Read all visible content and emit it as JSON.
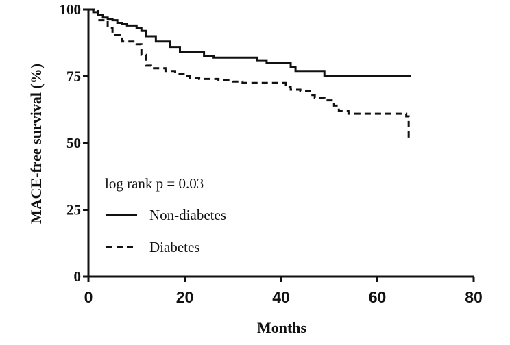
{
  "chart_data": {
    "type": "line",
    "title": "",
    "xlabel": "Months",
    "ylabel": "MACE-free survival (%)",
    "xlim": [
      0,
      80
    ],
    "ylim": [
      0,
      100
    ],
    "xticks": [
      0,
      20,
      40,
      60,
      80
    ],
    "yticks": [
      0,
      25,
      50,
      75,
      100
    ],
    "xtick_labels": [
      "0",
      "20",
      "40",
      "60",
      "80"
    ],
    "ytick_labels": [
      "0",
      "25",
      "50",
      "75",
      "100"
    ],
    "grid": false,
    "legend_position": "lower-left",
    "annotation": "log rank p = 0.03",
    "series": [
      {
        "name": "Non-diabetes",
        "style": "solid",
        "steps": [
          [
            0,
            100
          ],
          [
            1,
            99
          ],
          [
            2,
            98
          ],
          [
            3,
            97
          ],
          [
            4,
            96.5
          ],
          [
            5,
            96
          ],
          [
            6,
            95
          ],
          [
            7,
            94.5
          ],
          [
            8,
            94
          ],
          [
            10,
            93
          ],
          [
            11,
            92
          ],
          [
            12,
            90
          ],
          [
            14,
            88
          ],
          [
            17,
            86
          ],
          [
            19,
            84
          ],
          [
            24,
            82.5
          ],
          [
            26,
            82
          ],
          [
            35,
            81
          ],
          [
            37,
            80
          ],
          [
            42,
            78.5
          ],
          [
            43,
            77
          ],
          [
            49,
            75
          ],
          [
            67,
            75
          ]
        ]
      },
      {
        "name": "Diabetes",
        "style": "dashed",
        "steps": [
          [
            0,
            100
          ],
          [
            2,
            96
          ],
          [
            4,
            93
          ],
          [
            5,
            90.5
          ],
          [
            7,
            88
          ],
          [
            10,
            87
          ],
          [
            11,
            83
          ],
          [
            12,
            79
          ],
          [
            13,
            78
          ],
          [
            16,
            77
          ],
          [
            18,
            76
          ],
          [
            20,
            75
          ],
          [
            21,
            74.5
          ],
          [
            23,
            74
          ],
          [
            27,
            73.5
          ],
          [
            30,
            73
          ],
          [
            32,
            72.5
          ],
          [
            41,
            71
          ],
          [
            42,
            70
          ],
          [
            44,
            69.5
          ],
          [
            46,
            68
          ],
          [
            47,
            67
          ],
          [
            49,
            66
          ],
          [
            51,
            64
          ],
          [
            52,
            62
          ],
          [
            54,
            61
          ],
          [
            66,
            60
          ],
          [
            66.5,
            51
          ]
        ]
      }
    ]
  }
}
